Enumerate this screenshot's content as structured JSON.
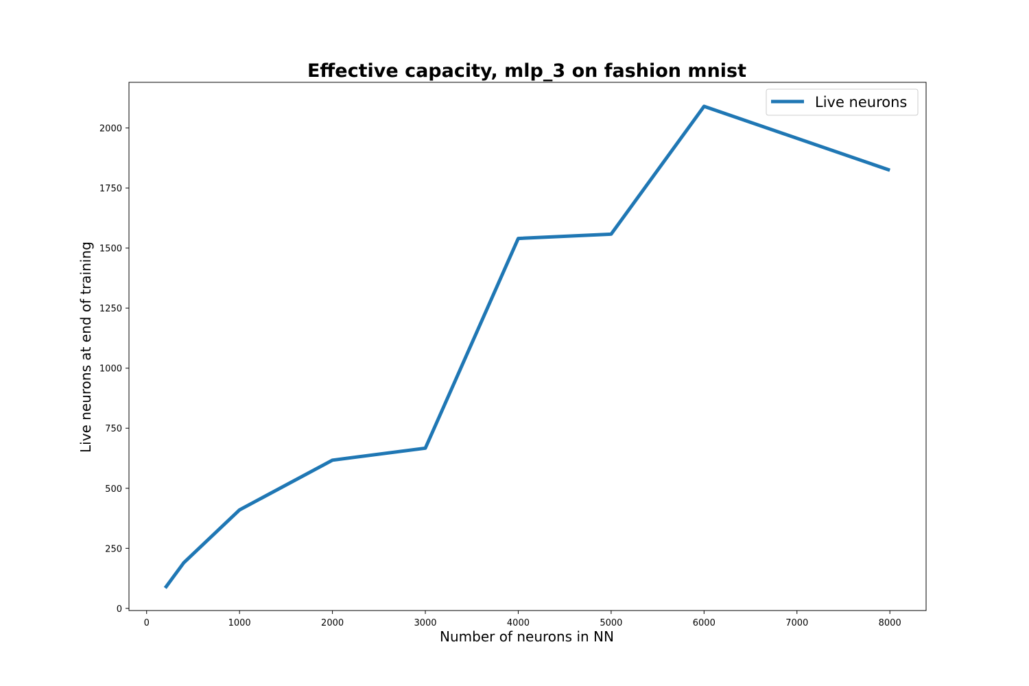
{
  "chart_data": {
    "type": "line",
    "title": "Effective capacity, mlp_3 on fashion mnist",
    "xlabel": "Number of neurons in NN",
    "ylabel": "Live neurons at end of training",
    "xlim": [
      -190,
      8390
    ],
    "ylim": [
      -9,
      2190
    ],
    "xticks": [
      0,
      1000,
      2000,
      3000,
      4000,
      5000,
      6000,
      7000,
      8000
    ],
    "yticks": [
      0,
      250,
      500,
      750,
      1000,
      1250,
      1500,
      1750,
      2000
    ],
    "grid": false,
    "legend_position": "top-right",
    "series": [
      {
        "name": "Live neurons",
        "color": "#1f77b4",
        "x": [
          200,
          400,
          1000,
          2000,
          3000,
          4000,
          5000,
          6000,
          8000
        ],
        "y": [
          85,
          190,
          410,
          617,
          667,
          1540,
          1558,
          2090,
          1824
        ]
      }
    ]
  }
}
